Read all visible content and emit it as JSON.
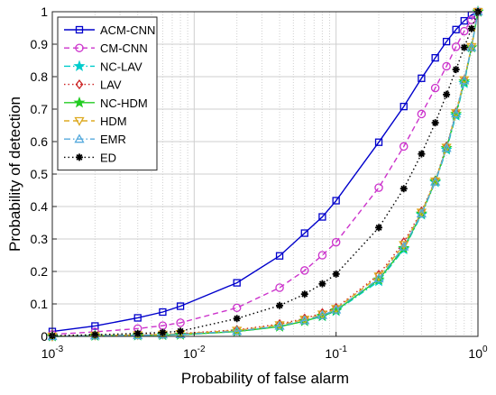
{
  "chart_data": {
    "type": "line",
    "title": "",
    "xlabel": "Probability of false alarm",
    "ylabel": "Probability of detection",
    "xscale": "log",
    "xlim": [
      0.001,
      1
    ],
    "ylim": [
      0,
      1
    ],
    "grid": true,
    "legend_position": "top-left",
    "x_ticks": [
      0.001,
      0.01,
      0.1,
      1
    ],
    "x_tick_labels": [
      {
        "base": "10",
        "exp": "-3"
      },
      {
        "base": "10",
        "exp": "-2"
      },
      {
        "base": "10",
        "exp": "-1"
      },
      {
        "base": "10",
        "exp": "0"
      }
    ],
    "y_ticks": [
      0,
      0.1,
      0.2,
      0.3,
      0.4,
      0.5,
      0.6,
      0.7,
      0.8,
      0.9,
      1
    ],
    "y_tick_labels": [
      "0",
      "0.1",
      "0.2",
      "0.3",
      "0.4",
      "0.5",
      "0.6",
      "0.7",
      "0.8",
      "0.9",
      "1"
    ],
    "x": [
      0.001,
      0.002,
      0.004,
      0.006,
      0.008,
      0.02,
      0.04,
      0.06,
      0.08,
      0.1,
      0.2,
      0.3,
      0.4,
      0.5,
      0.6,
      0.7,
      0.8,
      0.9,
      1
    ],
    "series": [
      {
        "name": "ACM-CNN",
        "color": "#0000cc",
        "dash": "solid",
        "marker": "square",
        "values": [
          0.015,
          0.032,
          0.057,
          0.075,
          0.093,
          0.165,
          0.248,
          0.318,
          0.368,
          0.418,
          0.598,
          0.708,
          0.795,
          0.858,
          0.908,
          0.945,
          0.972,
          0.99,
          1.0
        ]
      },
      {
        "name": "CM-CNN",
        "color": "#cc33cc",
        "dash": "dashed",
        "marker": "circle",
        "values": [
          0.006,
          0.014,
          0.024,
          0.033,
          0.042,
          0.088,
          0.15,
          0.203,
          0.25,
          0.29,
          0.458,
          0.585,
          0.685,
          0.765,
          0.832,
          0.892,
          0.94,
          0.975,
          1.0
        ]
      },
      {
        "name": "NC-LAV",
        "color": "#00cccc",
        "dash": "dashdot",
        "marker": "star",
        "values": [
          0.0,
          0.002,
          0.003,
          0.004,
          0.005,
          0.015,
          0.03,
          0.047,
          0.062,
          0.078,
          0.17,
          0.268,
          0.375,
          0.475,
          0.575,
          0.68,
          0.78,
          0.89,
          1.0
        ]
      },
      {
        "name": "LAV",
        "color": "#cc2222",
        "dash": "dotted",
        "marker": "diamond",
        "values": [
          0.0,
          0.003,
          0.005,
          0.007,
          0.009,
          0.02,
          0.038,
          0.055,
          0.072,
          0.088,
          0.19,
          0.29,
          0.385,
          0.48,
          0.585,
          0.69,
          0.79,
          0.89,
          1.0
        ]
      },
      {
        "name": "NC-HDM",
        "color": "#22cc22",
        "dash": "solid",
        "marker": "star",
        "values": [
          0.0,
          0.002,
          0.003,
          0.004,
          0.005,
          0.015,
          0.03,
          0.047,
          0.063,
          0.08,
          0.175,
          0.272,
          0.378,
          0.478,
          0.58,
          0.685,
          0.785,
          0.89,
          1.0
        ]
      },
      {
        "name": "HDM",
        "color": "#ddaa22",
        "dash": "dashed",
        "marker": "triangle-down",
        "values": [
          0.0,
          0.003,
          0.004,
          0.006,
          0.008,
          0.018,
          0.035,
          0.052,
          0.068,
          0.085,
          0.185,
          0.282,
          0.382,
          0.478,
          0.582,
          0.688,
          0.79,
          0.892,
          1.0
        ]
      },
      {
        "name": "EMR",
        "color": "#55aadd",
        "dash": "dashdot",
        "marker": "triangle-up",
        "values": [
          0.0,
          0.002,
          0.003,
          0.005,
          0.006,
          0.016,
          0.032,
          0.049,
          0.065,
          0.082,
          0.178,
          0.276,
          0.378,
          0.476,
          0.58,
          0.686,
          0.788,
          0.89,
          1.0
        ]
      },
      {
        "name": "ED",
        "color": "#000000",
        "dash": "dotted",
        "marker": "asterisk",
        "values": [
          0.002,
          0.005,
          0.009,
          0.012,
          0.016,
          0.055,
          0.095,
          0.13,
          0.162,
          0.192,
          0.335,
          0.455,
          0.562,
          0.658,
          0.745,
          0.822,
          0.89,
          0.948,
          1.0
        ]
      }
    ]
  }
}
